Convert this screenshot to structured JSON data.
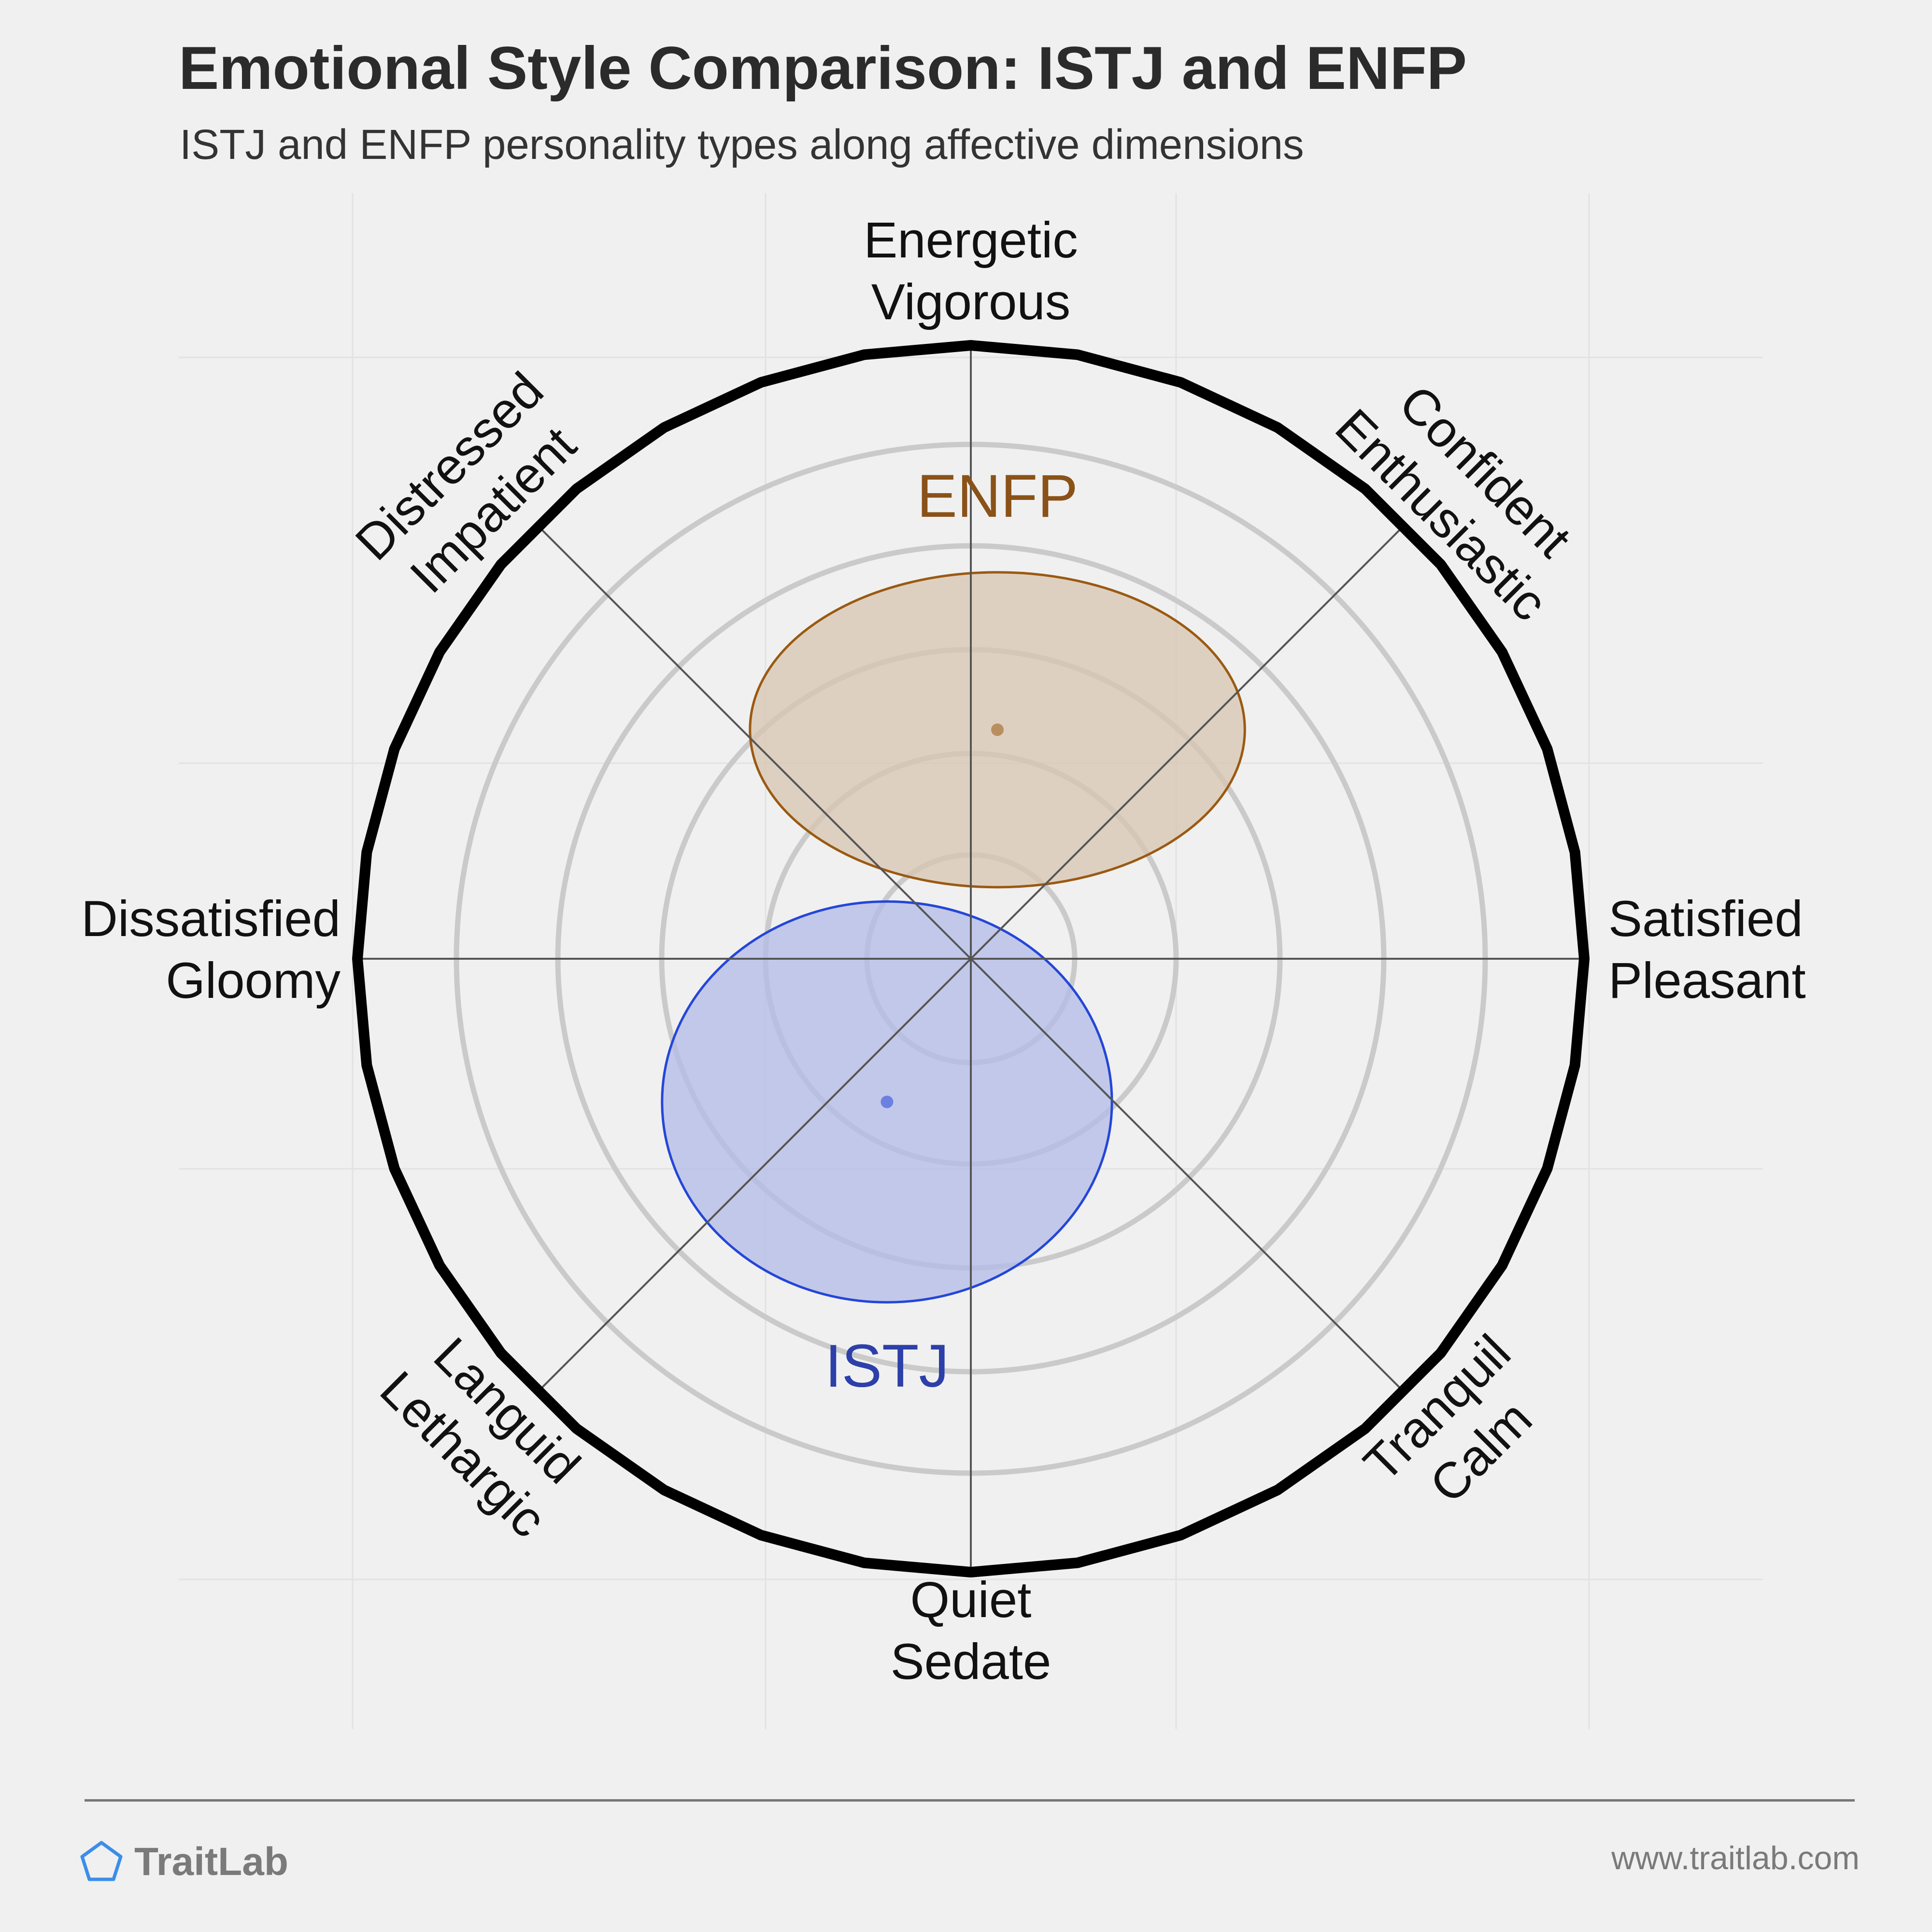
{
  "header": {
    "title": "Emotional Style Comparison: ISTJ and ENFP",
    "subtitle": "ISTJ and ENFP personality types along affective dimensions"
  },
  "footer": {
    "brand": "TraitLab",
    "url": "www.traitlab.com",
    "brand_icon": "pentagon-icon"
  },
  "colors": {
    "background": "#f0f0f0",
    "istj_fill": "#b3bbe8",
    "istj_stroke": "#2446d8",
    "istj_label": "#2d3fa8",
    "enfp_fill": "#d8c6b0",
    "enfp_stroke": "#9a5a12",
    "enfp_label": "#8a5218",
    "brand_icon": "#3b8ee8"
  },
  "chart_data": {
    "type": "scatter",
    "chart_kind": "affective circumplex",
    "axis_range": [
      -3,
      3
    ],
    "grid": true,
    "axes": [
      {
        "direction": "N",
        "label": [
          "Energetic",
          "Vigorous"
        ]
      },
      {
        "direction": "NE",
        "label": [
          "Confident",
          "Enthusiastic"
        ]
      },
      {
        "direction": "E",
        "label": [
          "Satisfied",
          "Pleasant"
        ]
      },
      {
        "direction": "SE",
        "label": [
          "Tranquil",
          "Calm"
        ]
      },
      {
        "direction": "S",
        "label": [
          "Quiet",
          "Sedate"
        ]
      },
      {
        "direction": "SW",
        "label": [
          "Languid",
          "Lethargic"
        ]
      },
      {
        "direction": "W",
        "label": [
          "Dissatisfied",
          "Gloomy"
        ]
      },
      {
        "direction": "NW",
        "label": [
          "Distressed",
          "Impatient"
        ]
      }
    ],
    "series": [
      {
        "name": "ENFP",
        "x": 0.13,
        "y": 1.12,
        "x_spread": 1.21,
        "y_spread": 0.77
      },
      {
        "name": "ISTJ",
        "x": -0.41,
        "y": -0.7,
        "x_spread": 1.1,
        "y_spread": 0.98
      }
    ]
  }
}
